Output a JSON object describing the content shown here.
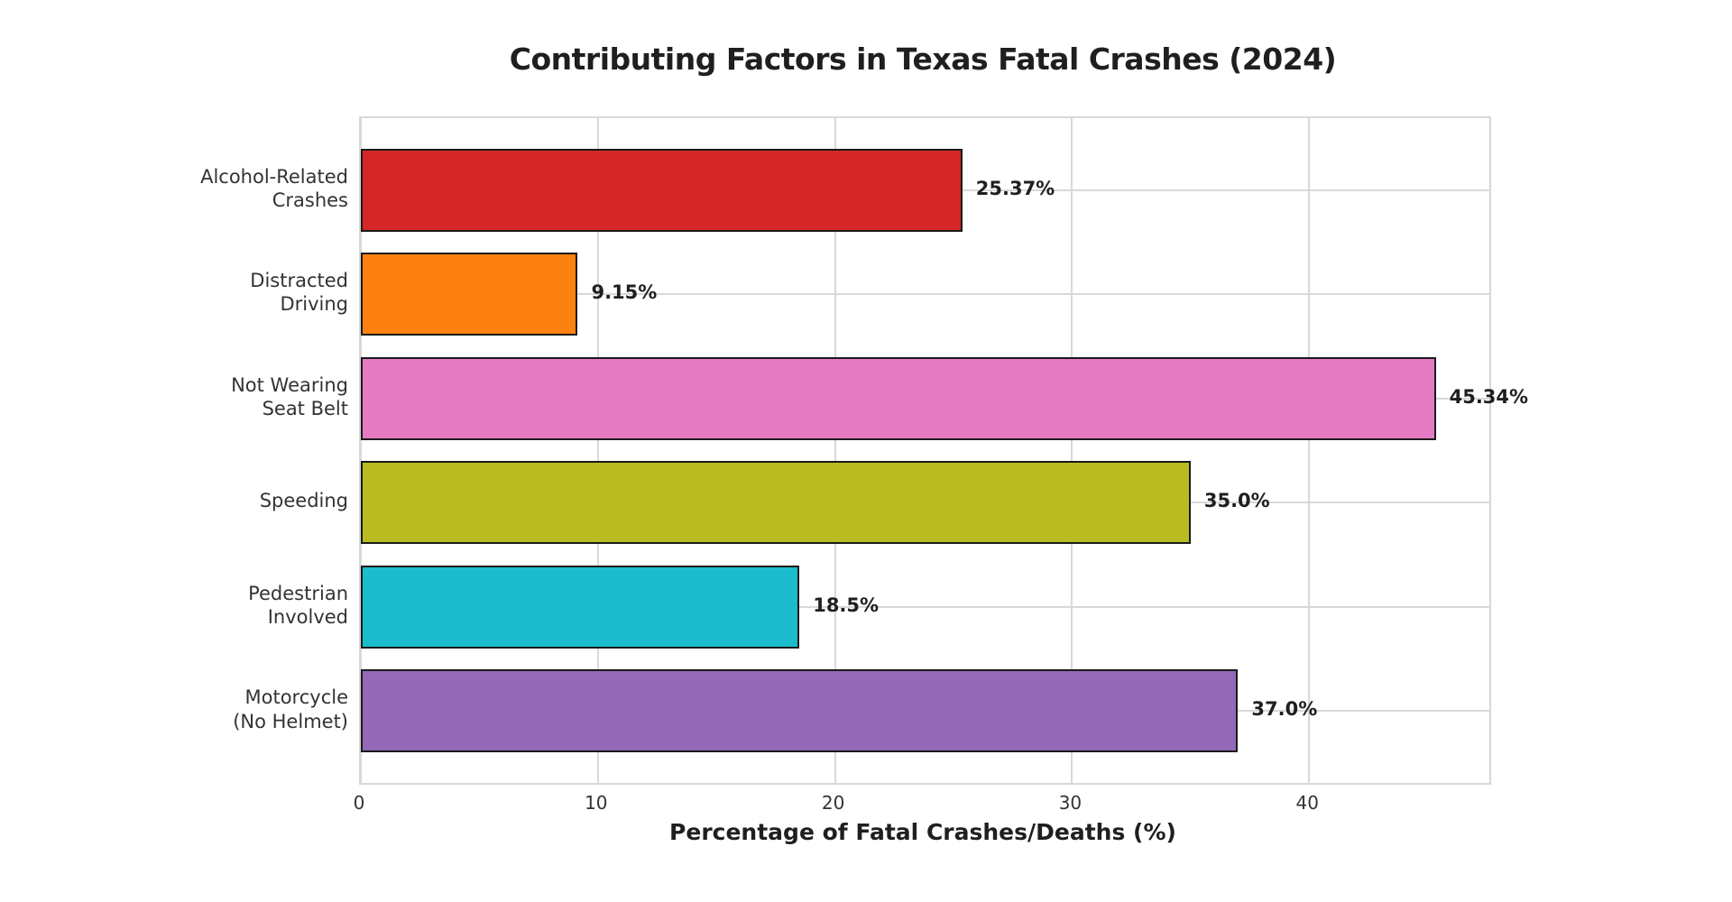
{
  "chart_data": {
    "type": "bar",
    "orientation": "horizontal",
    "title": "Contributing Factors in Texas Fatal Crashes (2024)",
    "categories": [
      "Alcohol-Related\nCrashes",
      "Distracted\nDriving",
      "Not Wearing\nSeat Belt",
      "Speeding",
      "Pedestrian\nInvolved",
      "Motorcycle\n(No Helmet)"
    ],
    "values": [
      25.37,
      9.15,
      45.34,
      35.0,
      18.5,
      37.0
    ],
    "value_labels": [
      "25.37%",
      "9.15%",
      "45.34%",
      "35.0%",
      "18.5%",
      "37.0%"
    ],
    "bar_colors": [
      "#d62728",
      "#fd810e",
      "#e47ac2",
      "#b8bc20",
      "#1bbdcd",
      "#9369b8"
    ],
    "bar_edge_color": "#1a1a1a",
    "xlabel": "Percentage of Fatal Crashes/Deaths (%)",
    "ylabel": "",
    "xlim": [
      0,
      47.6
    ],
    "xticks": [
      "0",
      "10",
      "20",
      "30",
      "40"
    ],
    "grid": true,
    "grid_color": "#d8d8d8",
    "legend": false,
    "background": "#ffffff"
  }
}
